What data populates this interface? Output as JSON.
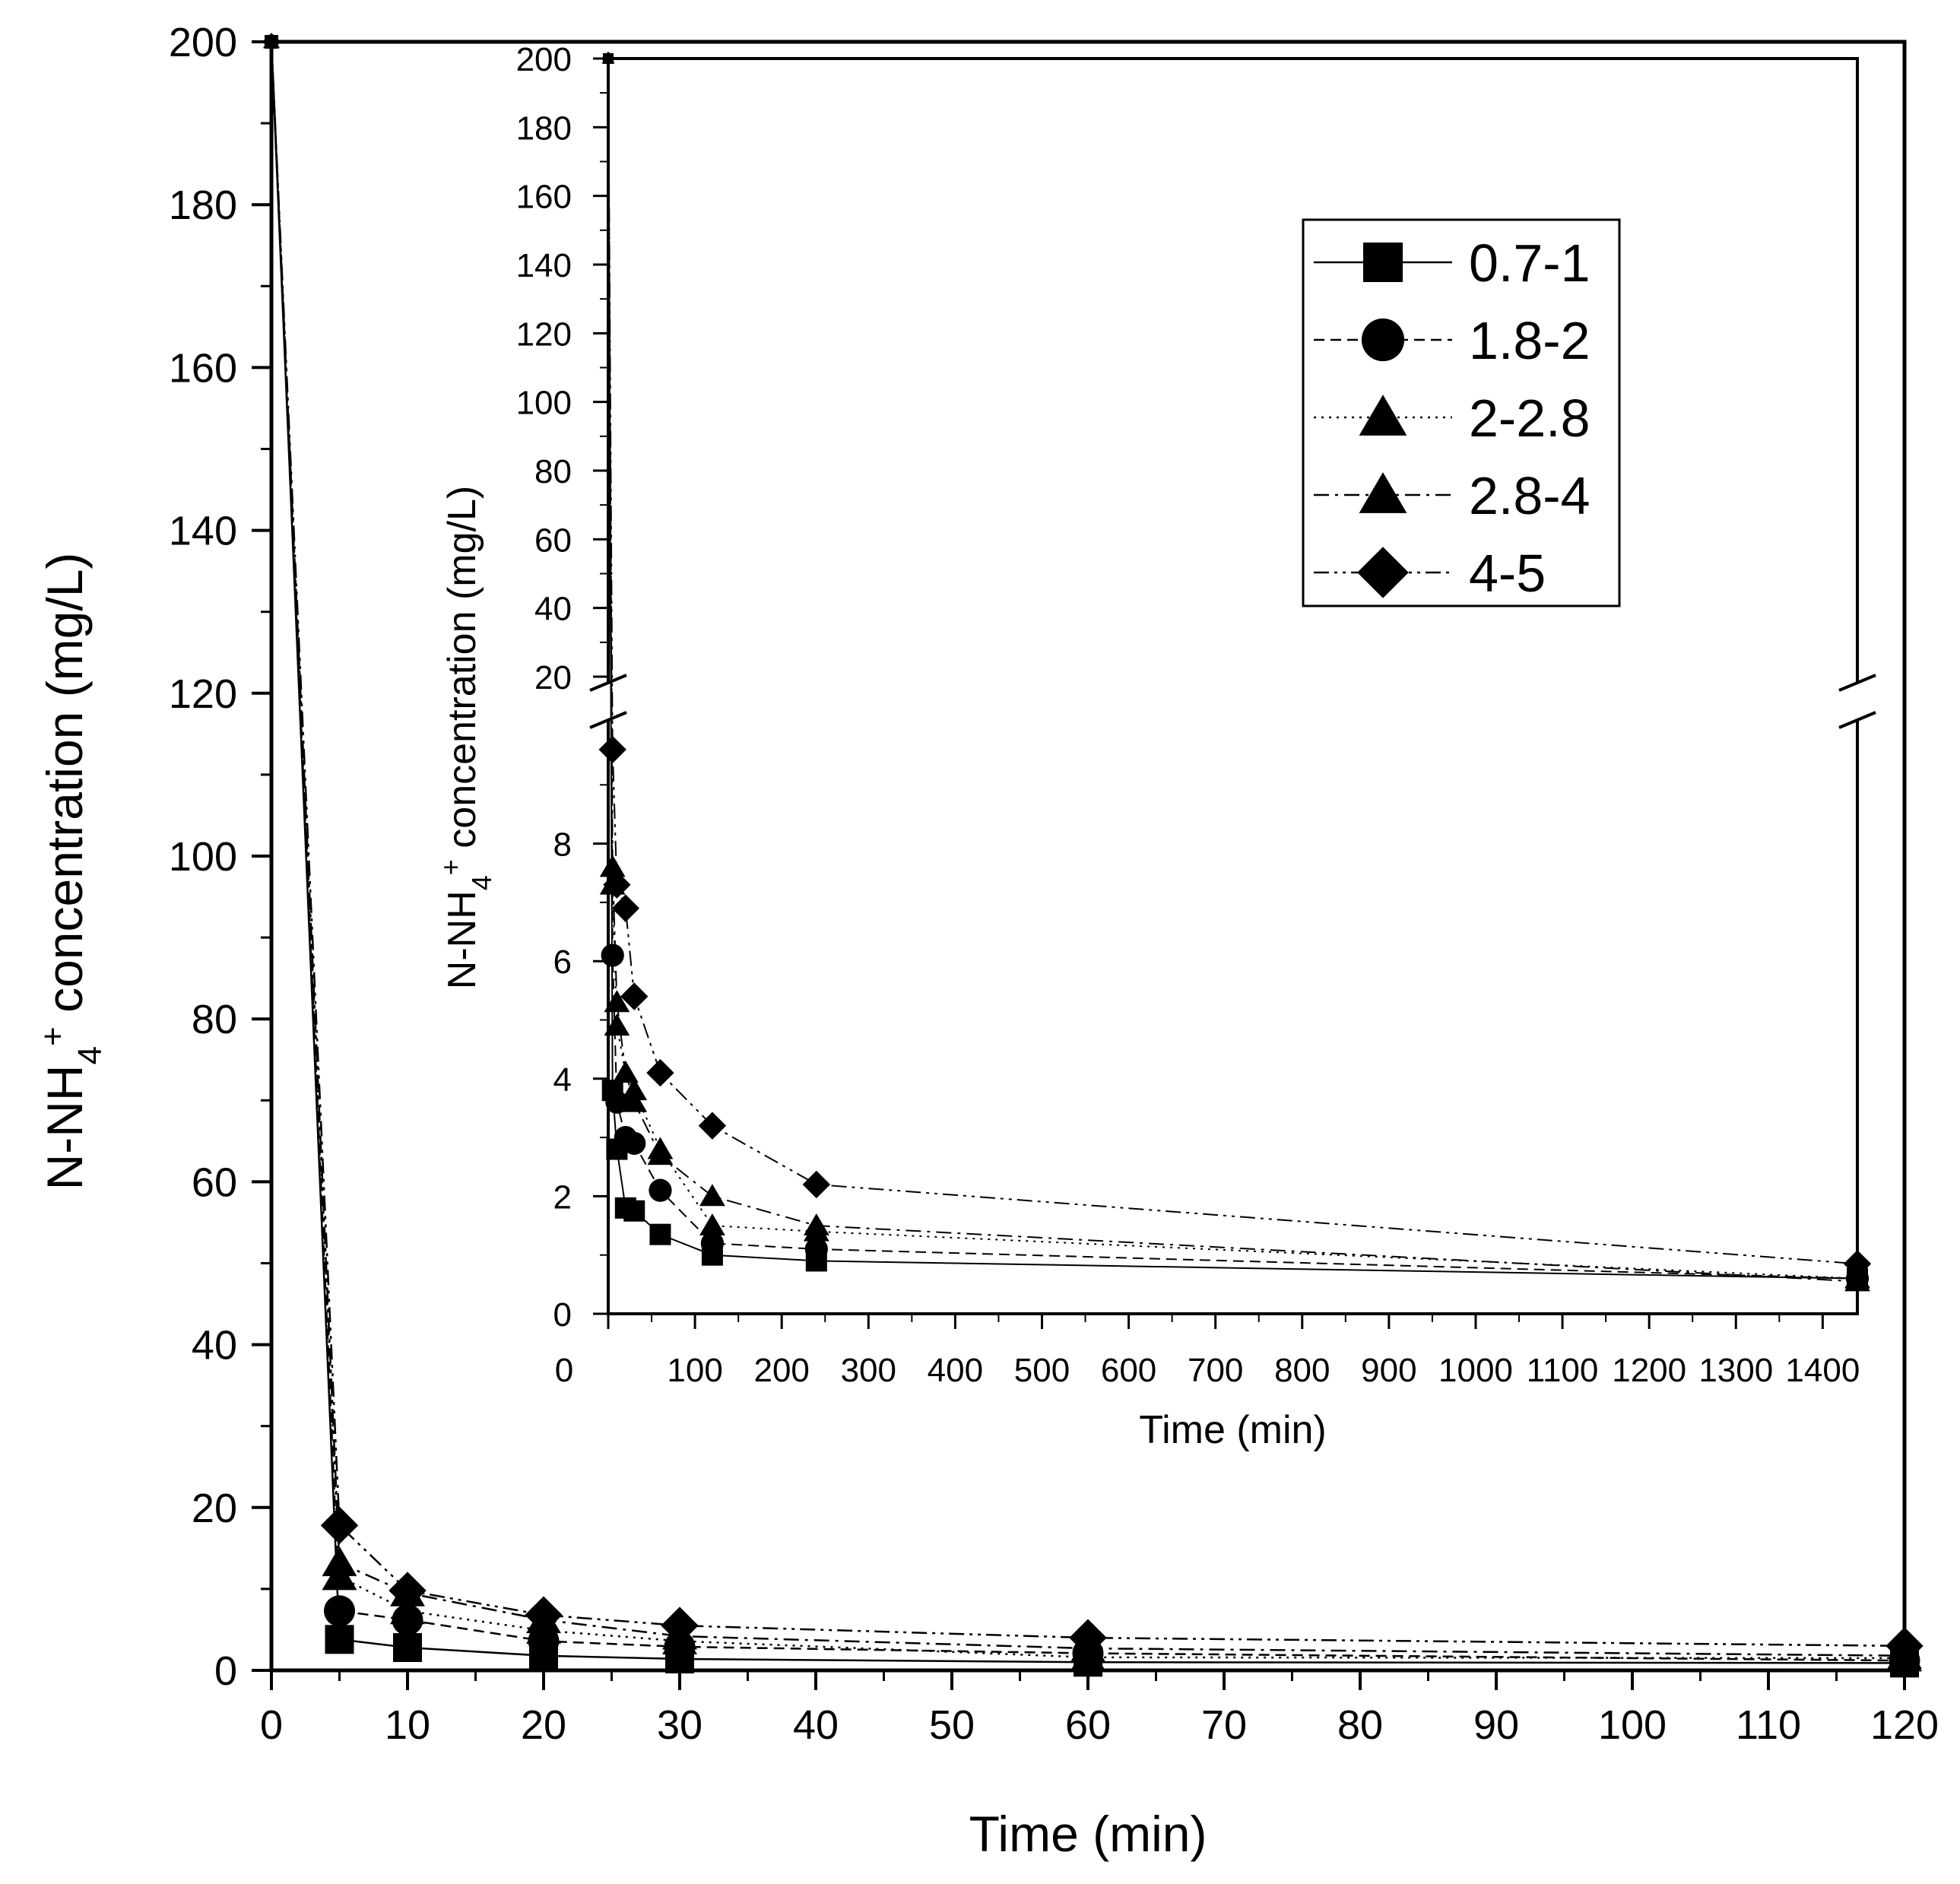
{
  "chart_data": [
    {
      "type": "line",
      "panel": "main",
      "xlabel": "Time (min)",
      "ylabel_parts": [
        "N-NH",
        "4",
        "+",
        " concentration (mg/L)"
      ],
      "xlim": [
        0,
        120
      ],
      "ylim": [
        0,
        200
      ],
      "xticks": [
        0,
        10,
        20,
        30,
        40,
        50,
        60,
        70,
        80,
        90,
        100,
        110,
        120
      ],
      "yticks": [
        0,
        20,
        40,
        60,
        80,
        100,
        120,
        140,
        160,
        180,
        200
      ],
      "x": [
        0,
        5,
        10,
        20,
        30,
        60,
        120
      ],
      "series": [
        {
          "name": "0.7-1",
          "marker": "square",
          "line": "solid",
          "values": [
            200,
            3.8,
            2.8,
            1.8,
            1.4,
            1.0,
            0.9
          ]
        },
        {
          "name": "1.8-2",
          "marker": "circle",
          "line": "dashed",
          "values": [
            200,
            7.3,
            6.2,
            3.6,
            2.9,
            2.1,
            1.2
          ]
        },
        {
          "name": "2-2.8",
          "marker": "triangle",
          "line": "dotted",
          "values": [
            200,
            11.5,
            7.3,
            4.9,
            3.6,
            1.6,
            1.5
          ]
        },
        {
          "name": "2.8-4",
          "marker": "triangle",
          "line": "dashdot",
          "values": [
            200,
            13.2,
            9.5,
            6.2,
            4.2,
            2.7,
            1.8
          ]
        },
        {
          "name": "4-5",
          "marker": "diamond",
          "line": "dashdotdot",
          "values": [
            200,
            17.8,
            9.8,
            6.8,
            5.5,
            4.0,
            3.0
          ]
        }
      ]
    },
    {
      "type": "line",
      "panel": "inset",
      "xlabel": "Time (min)",
      "ylabel_parts": [
        "N-NH",
        "4",
        "+",
        " concentration (mg/L)"
      ],
      "xlim": [
        0,
        1440
      ],
      "y_break": true,
      "ylim_lower": [
        0,
        10
      ],
      "ylim_upper": [
        20,
        200
      ],
      "xticks": [
        0,
        100,
        200,
        300,
        400,
        500,
        600,
        700,
        800,
        900,
        1000,
        1100,
        1200,
        1300,
        1400
      ],
      "yticks_lower": [
        0,
        2,
        4,
        6,
        8
      ],
      "yticks_upper": [
        20,
        40,
        60,
        80,
        100,
        120,
        140,
        160,
        180,
        200
      ],
      "x": [
        0,
        5,
        10,
        20,
        30,
        60,
        120,
        240,
        1440
      ],
      "series": [
        {
          "name": "0.7-1",
          "marker": "square",
          "line": "solid",
          "values": [
            200,
            3.8,
            2.8,
            1.8,
            1.75,
            1.35,
            1.0,
            0.9,
            0.6
          ]
        },
        {
          "name": "1.8-2",
          "marker": "circle",
          "line": "dashed",
          "values": [
            200,
            6.1,
            3.6,
            3.0,
            2.9,
            2.1,
            1.2,
            1.1,
            0.6
          ]
        },
        {
          "name": "2-2.8",
          "marker": "triangle",
          "line": "dotted",
          "values": [
            200,
            7.3,
            4.9,
            4.1,
            3.8,
            2.8,
            1.5,
            1.4,
            0.6
          ]
        },
        {
          "name": "2.8-4",
          "marker": "triangle",
          "line": "dashdot",
          "values": [
            200,
            7.6,
            5.3,
            4.1,
            3.6,
            2.7,
            2.0,
            1.5,
            0.55
          ]
        },
        {
          "name": "4-5",
          "marker": "diamond",
          "line": "dashdotdot",
          "values": [
            200,
            9.6,
            7.3,
            6.9,
            5.4,
            4.1,
            3.2,
            2.2,
            0.85
          ]
        }
      ]
    }
  ]
}
